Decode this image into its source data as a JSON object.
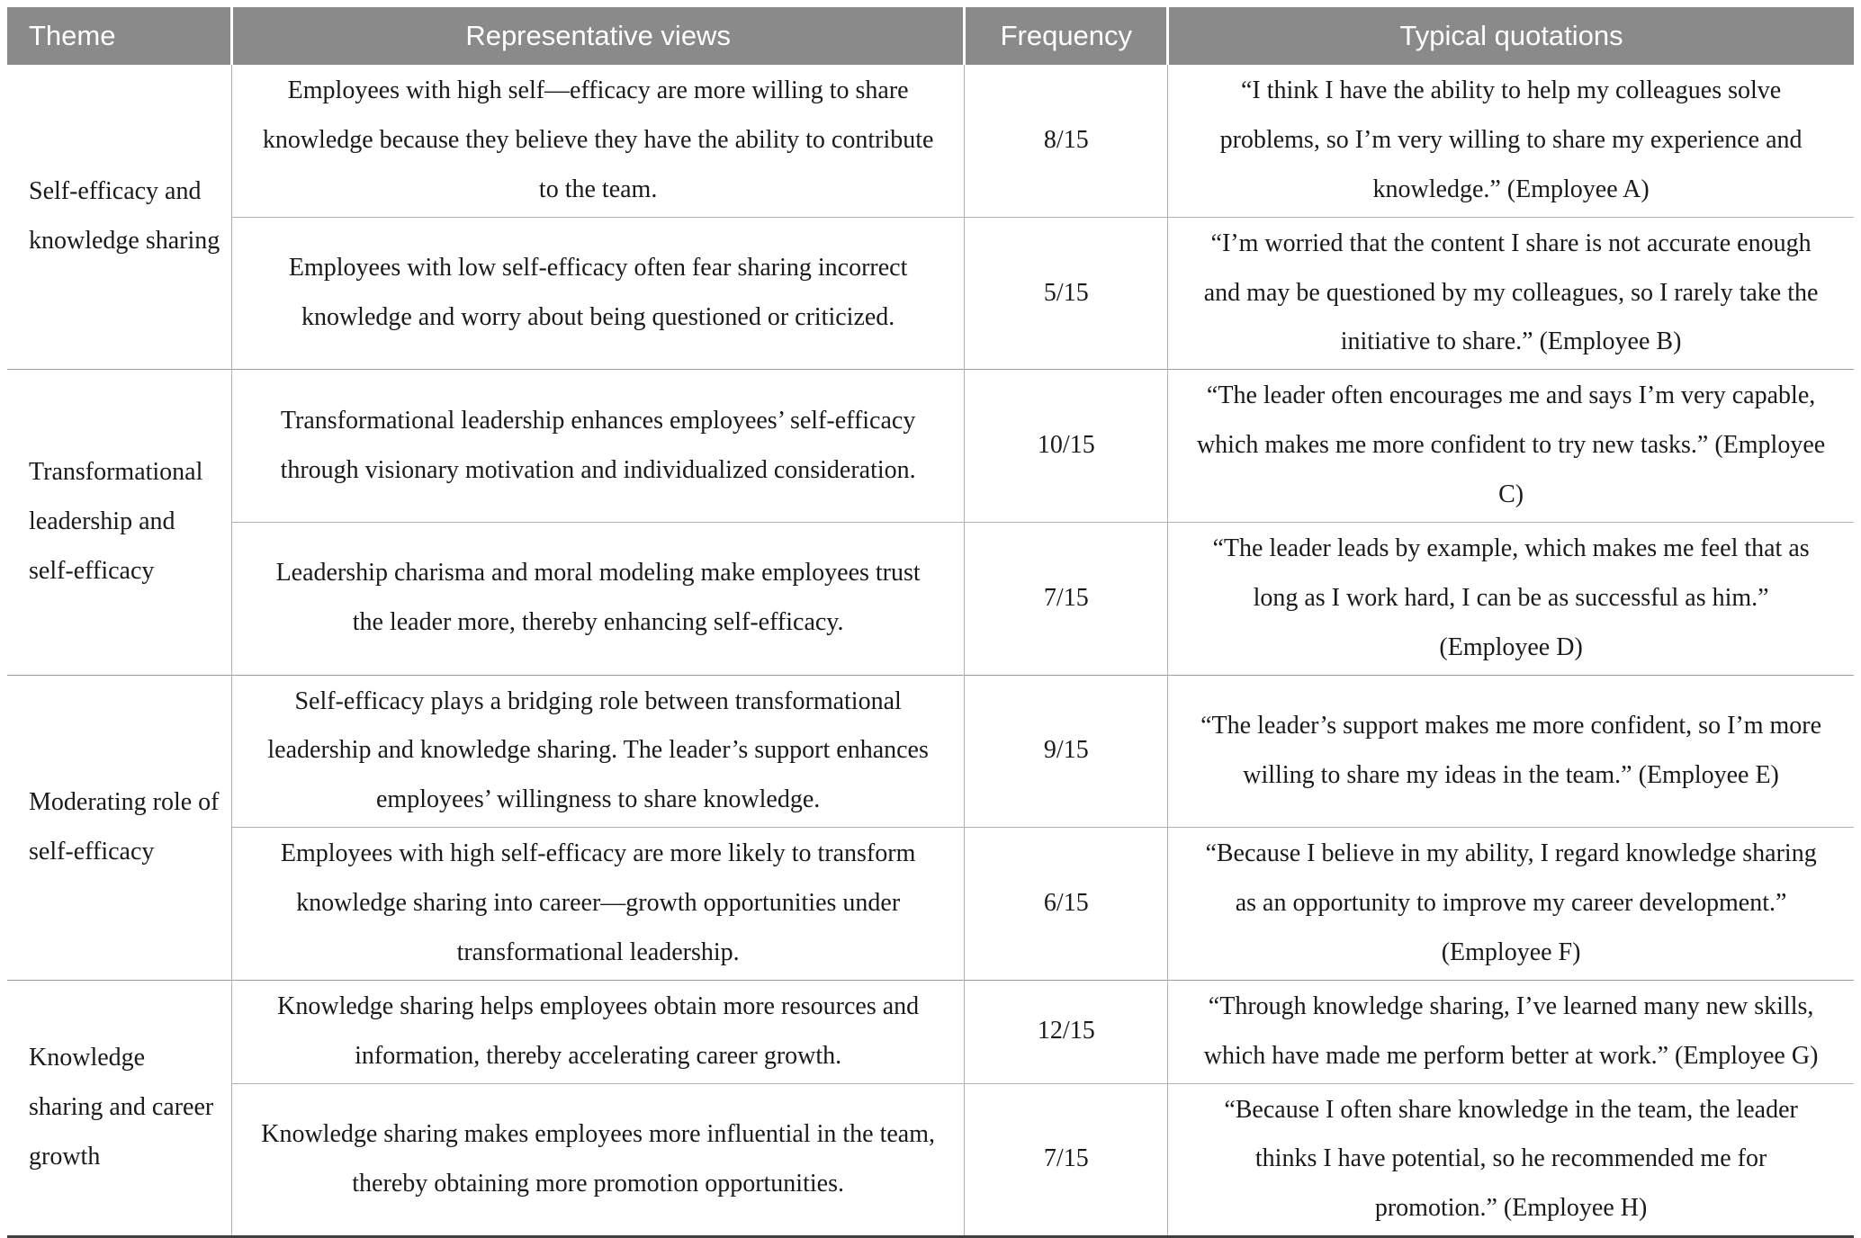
{
  "colors": {
    "header_bg": "#8a8a8a",
    "header_text": "#ffffff",
    "body_text": "#1a1a1a",
    "grid_line": "#b0b0b0",
    "group_line": "#9a9a9a",
    "bottom_border": "#3f3f3f"
  },
  "table": {
    "columns": [
      "Theme",
      "Representative views",
      "Frequency",
      "Typical quotations"
    ],
    "themes": [
      {
        "theme": "Self-efficacy and knowledge sharing",
        "rows": [
          {
            "view": "Employees with high self—efficacy are more willing to share knowledge because they believe they have the ability to contribute to the team.",
            "frequency": "8/15",
            "quotation": "“I think I have the ability to help my colleagues solve problems, so I’m very willing to share my experience and knowledge.” (Employee A)"
          },
          {
            "view": "Employees with low self-efficacy often fear sharing incorrect knowledge and worry about being questioned or criticized.",
            "frequency": "5/15",
            "quotation": "“I’m worried that the content I share is not accurate enough and may be questioned by my colleagues, so I rarely take the initiative to share.” (Employee B)"
          }
        ]
      },
      {
        "theme": "Transformational leadership and self-efficacy",
        "rows": [
          {
            "view": "Transformational leadership enhances employees’ self-efficacy through visionary motivation and individualized consideration.",
            "frequency": "10/15",
            "quotation": "“The leader often encourages me and says I’m very capable, which makes me more confident to try new tasks.” (Employee C)"
          },
          {
            "view": "Leadership charisma and moral modeling make employees trust the leader more, thereby enhancing self-efficacy.",
            "frequency": "7/15",
            "quotation": "“The leader leads by example, which makes me feel that as long as I work hard, I can be as successful as him.” (Employee D)"
          }
        ]
      },
      {
        "theme": "Moderating role of self-efficacy",
        "rows": [
          {
            "view": "Self-efficacy plays a bridging role between transformational leadership and knowledge sharing. The leader’s support enhances employees’ willingness to share knowledge.",
            "frequency": "9/15",
            "quotation": "“The leader’s support makes me more confident, so I’m more willing to share my ideas in the team.” (Employee E)"
          },
          {
            "view": "Employees with high self-efficacy are more likely to transform knowledge sharing into career—growth opportunities under transformational leadership.",
            "frequency": "6/15",
            "quotation": "“Because I believe in my ability, I regard knowledge sharing as an opportunity to improve my career development.” (Employee F)"
          }
        ]
      },
      {
        "theme": "Knowledge sharing and career growth",
        "rows": [
          {
            "view": "Knowledge sharing helps employees obtain more resources and information, thereby accelerating career growth.",
            "frequency": "12/15",
            "quotation": "“Through knowledge sharing, I’ve learned many new skills, which have made me perform better at work.” (Employee G)"
          },
          {
            "view": "Knowledge sharing makes employees more influential in the team, thereby obtaining more promotion opportunities.",
            "frequency": "7/15",
            "quotation": "“Because I often share knowledge in the team, the leader thinks I have potential, so he recommended me for promotion.” (Employee H)"
          }
        ]
      }
    ]
  }
}
